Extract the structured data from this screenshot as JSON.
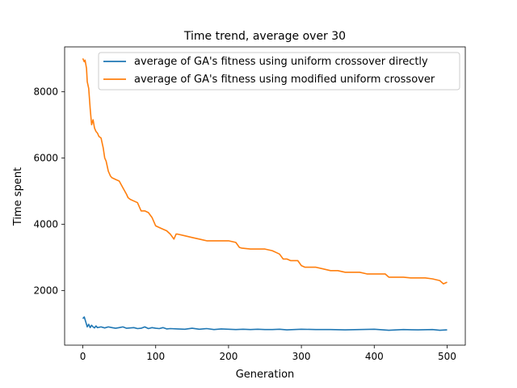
{
  "colors": {
    "series_1": "#1f77b4",
    "series_2": "#ff7f0e",
    "axis": "#000000",
    "legend_border": "#cccccc"
  },
  "chart_data": {
    "type": "line",
    "title": "Time trend, average over 30",
    "xlabel": "Generation",
    "ylabel": "Time spent",
    "xlim": [
      -25,
      525
    ],
    "ylim": [
      350,
      9350
    ],
    "x_ticks": [
      0,
      100,
      200,
      300,
      400,
      500
    ],
    "y_ticks": [
      2000,
      4000,
      6000,
      8000
    ],
    "grid": false,
    "legend_position": "top-right",
    "series": [
      {
        "name": "average of GA's fitness using uniform crossover directly",
        "color": "#1f77b4",
        "x": [
          0,
          2,
          4,
          6,
          8,
          10,
          12,
          14,
          16,
          18,
          20,
          25,
          30,
          35,
          40,
          45,
          50,
          55,
          60,
          65,
          70,
          75,
          80,
          85,
          90,
          95,
          100,
          105,
          110,
          115,
          120,
          130,
          140,
          150,
          160,
          170,
          180,
          190,
          200,
          210,
          220,
          230,
          240,
          250,
          260,
          270,
          280,
          290,
          300,
          320,
          340,
          360,
          380,
          400,
          420,
          440,
          460,
          480,
          490,
          500
        ],
        "y": [
          1150,
          1200,
          1050,
          900,
          980,
          880,
          950,
          900,
          870,
          930,
          880,
          900,
          870,
          900,
          880,
          860,
          880,
          900,
          860,
          870,
          880,
          850,
          860,
          900,
          850,
          880,
          860,
          850,
          880,
          840,
          850,
          840,
          830,
          860,
          830,
          850,
          820,
          840,
          830,
          820,
          830,
          820,
          830,
          820,
          820,
          830,
          810,
          820,
          830,
          820,
          820,
          810,
          820,
          830,
          800,
          820,
          810,
          820,
          800,
          810
        ]
      },
      {
        "name": "average of GA's fitness using modified uniform crossover",
        "color": "#ff7f0e",
        "x": [
          0,
          2,
          3,
          5,
          6,
          8,
          10,
          12,
          14,
          16,
          18,
          20,
          22,
          25,
          28,
          30,
          32,
          35,
          38,
          40,
          45,
          50,
          55,
          60,
          62,
          65,
          70,
          75,
          80,
          85,
          90,
          95,
          100,
          105,
          110,
          115,
          120,
          125,
          128,
          130,
          140,
          150,
          160,
          170,
          180,
          190,
          200,
          210,
          215,
          218,
          230,
          240,
          250,
          260,
          265,
          270,
          275,
          280,
          285,
          295,
          300,
          305,
          310,
          320,
          330,
          340,
          350,
          360,
          370,
          380,
          390,
          400,
          410,
          415,
          420,
          430,
          440,
          450,
          460,
          470,
          480,
          490,
          495,
          500
        ],
        "y": [
          9000,
          8900,
          8950,
          8700,
          8300,
          8100,
          7500,
          7000,
          7150,
          6900,
          6800,
          6750,
          6650,
          6600,
          6300,
          6000,
          5900,
          5600,
          5450,
          5400,
          5350,
          5300,
          5100,
          4900,
          4800,
          4750,
          4700,
          4650,
          4400,
          4400,
          4350,
          4200,
          3950,
          3900,
          3850,
          3800,
          3700,
          3550,
          3700,
          3700,
          3650,
          3600,
          3550,
          3500,
          3500,
          3500,
          3500,
          3450,
          3300,
          3280,
          3250,
          3250,
          3250,
          3200,
          3150,
          3100,
          2950,
          2950,
          2900,
          2900,
          2750,
          2700,
          2700,
          2700,
          2650,
          2600,
          2600,
          2550,
          2550,
          2550,
          2500,
          2500,
          2500,
          2500,
          2400,
          2400,
          2400,
          2380,
          2380,
          2380,
          2350,
          2300,
          2200,
          2250
        ]
      }
    ]
  }
}
